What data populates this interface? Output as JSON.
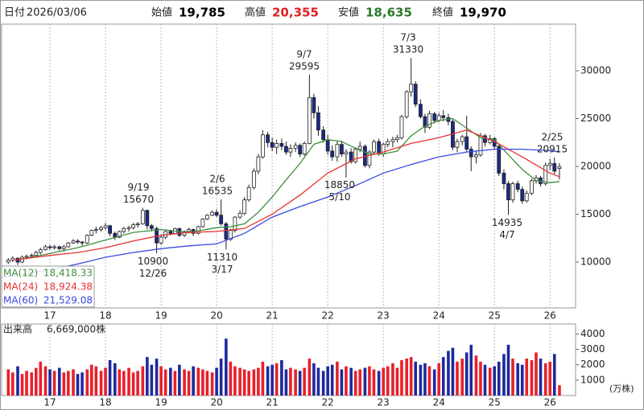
{
  "header": {
    "date_label": "日付",
    "date": "2026/03/06",
    "fields": [
      {
        "label": "始値",
        "value": "19,785",
        "color": "#000000"
      },
      {
        "label": "高値",
        "value": "20,355",
        "color": "#e02020"
      },
      {
        "label": "安値",
        "value": "18,635",
        "color": "#2a7a2a"
      },
      {
        "label": "終値",
        "value": "19,970",
        "color": "#000000"
      }
    ]
  },
  "chart_data": {
    "type": "candlestick",
    "x": [
      2016.25,
      2016.33,
      2016.42,
      2016.5,
      2016.58,
      2016.67,
      2016.75,
      2016.83,
      2016.92,
      2017.0,
      2017.08,
      2017.17,
      2017.25,
      2017.33,
      2017.42,
      2017.5,
      2017.58,
      2017.67,
      2017.75,
      2017.83,
      2017.92,
      2018.0,
      2018.08,
      2018.17,
      2018.25,
      2018.33,
      2018.42,
      2018.5,
      2018.58,
      2018.67,
      2018.75,
      2018.83,
      2018.92,
      2019.0,
      2019.08,
      2019.17,
      2019.25,
      2019.33,
      2019.42,
      2019.5,
      2019.58,
      2019.67,
      2019.75,
      2019.83,
      2019.92,
      2020.0,
      2020.08,
      2020.17,
      2020.25,
      2020.33,
      2020.42,
      2020.5,
      2020.58,
      2020.67,
      2020.75,
      2020.83,
      2020.92,
      2021.0,
      2021.08,
      2021.17,
      2021.25,
      2021.33,
      2021.42,
      2021.5,
      2021.58,
      2021.67,
      2021.75,
      2021.83,
      2021.92,
      2022.0,
      2022.08,
      2022.17,
      2022.25,
      2022.33,
      2022.42,
      2022.5,
      2022.58,
      2022.67,
      2022.75,
      2022.83,
      2022.92,
      2023.0,
      2023.08,
      2023.17,
      2023.25,
      2023.33,
      2023.42,
      2023.5,
      2023.58,
      2023.67,
      2023.75,
      2023.83,
      2023.92,
      2024.0,
      2024.08,
      2024.17,
      2024.25,
      2024.33,
      2024.42,
      2024.5,
      2024.58,
      2024.67,
      2024.75,
      2024.83,
      2024.92,
      2025.0,
      2025.08,
      2025.17,
      2025.25,
      2025.33,
      2025.42,
      2025.5,
      2025.58,
      2025.67,
      2025.75,
      2025.83,
      2025.92,
      2026.0,
      2026.08,
      2026.17
    ],
    "ohlc": [
      [
        10000,
        10400,
        9800,
        10200
      ],
      [
        10200,
        10600,
        10000,
        10400
      ],
      [
        10400,
        10500,
        9700,
        10000
      ],
      [
        10000,
        10700,
        9900,
        10500
      ],
      [
        10500,
        10800,
        10300,
        10600
      ],
      [
        10600,
        10900,
        10400,
        10700
      ],
      [
        10700,
        11200,
        10600,
        11000
      ],
      [
        11000,
        11500,
        10800,
        11300
      ],
      [
        11300,
        11800,
        11200,
        11600
      ],
      [
        11600,
        11800,
        11300,
        11500
      ],
      [
        11500,
        11800,
        11300,
        11600
      ],
      [
        11600,
        11700,
        11200,
        11400
      ],
      [
        11400,
        11800,
        11100,
        11600
      ],
      [
        11600,
        12100,
        11500,
        12000
      ],
      [
        12000,
        12400,
        11900,
        12200
      ],
      [
        12200,
        12400,
        11900,
        12100
      ],
      [
        12100,
        12200,
        11700,
        12000
      ],
      [
        12000,
        12900,
        11900,
        12800
      ],
      [
        12800,
        13400,
        12700,
        13300
      ],
      [
        13300,
        13700,
        13000,
        13400
      ],
      [
        13400,
        13800,
        13200,
        13600
      ],
      [
        13600,
        14100,
        13400,
        13800
      ],
      [
        13800,
        13900,
        12700,
        13000
      ],
      [
        13000,
        13200,
        12300,
        12600
      ],
      [
        12600,
        13300,
        12500,
        13200
      ],
      [
        13200,
        13700,
        13000,
        13500
      ],
      [
        13500,
        13800,
        13200,
        13600
      ],
      [
        13600,
        14100,
        13400,
        13900
      ],
      [
        13900,
        14200,
        13600,
        14000
      ],
      [
        14000,
        15670,
        13900,
        15400
      ],
      [
        15400,
        15500,
        13400,
        13800
      ],
      [
        13800,
        14000,
        13200,
        13500
      ],
      [
        13500,
        13700,
        10900,
        12000
      ],
      [
        12000,
        12800,
        11800,
        12600
      ],
      [
        12600,
        13300,
        12400,
        13200
      ],
      [
        13200,
        13400,
        12800,
        13000
      ],
      [
        13000,
        13600,
        12900,
        13500
      ],
      [
        13500,
        13600,
        12600,
        12800
      ],
      [
        12800,
        13300,
        12600,
        13200
      ],
      [
        13200,
        13600,
        13000,
        13400
      ],
      [
        13400,
        13500,
        12700,
        13000
      ],
      [
        13000,
        13800,
        12900,
        13700
      ],
      [
        13700,
        14600,
        13600,
        14500
      ],
      [
        14500,
        15000,
        14400,
        14900
      ],
      [
        14900,
        15400,
        14800,
        15200
      ],
      [
        15200,
        15500,
        14700,
        14900
      ],
      [
        14900,
        16535,
        13800,
        14000
      ],
      [
        14000,
        14200,
        11310,
        12400
      ],
      [
        12400,
        13500,
        12200,
        13300
      ],
      [
        13300,
        14800,
        13100,
        14700
      ],
      [
        14700,
        15400,
        14500,
        15100
      ],
      [
        15100,
        16800,
        14900,
        16500
      ],
      [
        16500,
        18100,
        16300,
        17800
      ],
      [
        17800,
        19800,
        17600,
        19500
      ],
      [
        19500,
        21300,
        19200,
        21000
      ],
      [
        21000,
        23800,
        20800,
        23300
      ],
      [
        23300,
        23600,
        22000,
        22500
      ],
      [
        22500,
        23000,
        21600,
        22000
      ],
      [
        22000,
        22800,
        21300,
        22400
      ],
      [
        22400,
        22900,
        21700,
        22100
      ],
      [
        22100,
        22600,
        21200,
        21500
      ],
      [
        21500,
        22300,
        21000,
        21900
      ],
      [
        21900,
        22500,
        21500,
        22200
      ],
      [
        22200,
        22400,
        21000,
        21300
      ],
      [
        21300,
        22600,
        21100,
        22400
      ],
      [
        22400,
        29595,
        22300,
        27200
      ],
      [
        27200,
        27600,
        25000,
        25600
      ],
      [
        25600,
        26300,
        23200,
        23800
      ],
      [
        23800,
        24200,
        22500,
        22800
      ],
      [
        22800,
        23300,
        21200,
        21600
      ],
      [
        21600,
        22200,
        20600,
        21000
      ],
      [
        21000,
        22600,
        20500,
        22300
      ],
      [
        22300,
        22700,
        21000,
        21300
      ],
      [
        21300,
        21800,
        18850,
        21500
      ],
      [
        21500,
        21900,
        20300,
        20500
      ],
      [
        20500,
        22000,
        20300,
        21800
      ],
      [
        21800,
        22600,
        21500,
        22100
      ],
      [
        22100,
        22300,
        19900,
        20100
      ],
      [
        20100,
        21700,
        19800,
        21500
      ],
      [
        21500,
        22800,
        21300,
        22600
      ],
      [
        22600,
        22900,
        21100,
        21300
      ],
      [
        21300,
        22500,
        21000,
        22300
      ],
      [
        22300,
        22900,
        22000,
        22600
      ],
      [
        22600,
        23100,
        22000,
        22800
      ],
      [
        22800,
        23300,
        22500,
        23000
      ],
      [
        23000,
        25400,
        22800,
        25200
      ],
      [
        25200,
        28000,
        25000,
        27800
      ],
      [
        27800,
        31330,
        27300,
        28600
      ],
      [
        28600,
        28900,
        26200,
        26500
      ],
      [
        26500,
        27000,
        25000,
        25200
      ],
      [
        25200,
        25500,
        23500,
        24100
      ],
      [
        24100,
        25800,
        23900,
        25500
      ],
      [
        25500,
        25700,
        24500,
        24800
      ],
      [
        24800,
        25600,
        24600,
        25300
      ],
      [
        25300,
        25900,
        24700,
        25100
      ],
      [
        25100,
        25500,
        24300,
        24700
      ],
      [
        24700,
        24900,
        21700,
        22000
      ],
      [
        22000,
        22900,
        21500,
        22600
      ],
      [
        22600,
        23300,
        22200,
        23100
      ],
      [
        23100,
        25300,
        21500,
        21800
      ],
      [
        21800,
        22100,
        19500,
        21000
      ],
      [
        21000,
        21700,
        20300,
        21200
      ],
      [
        21200,
        23500,
        21000,
        23200
      ],
      [
        23200,
        23400,
        22100,
        22500
      ],
      [
        22500,
        23300,
        22300,
        22900
      ],
      [
        22900,
        23100,
        21800,
        22100
      ],
      [
        22100,
        22400,
        19000,
        19300
      ],
      [
        19300,
        19700,
        17600,
        18200
      ],
      [
        18200,
        18500,
        14935,
        16500
      ],
      [
        16500,
        18400,
        16200,
        18200
      ],
      [
        18200,
        18500,
        17300,
        17600
      ],
      [
        17600,
        17900,
        16100,
        16400
      ],
      [
        16400,
        17500,
        16200,
        17200
      ],
      [
        17200,
        18700,
        17000,
        18500
      ],
      [
        18500,
        19100,
        18200,
        18800
      ],
      [
        18800,
        19000,
        17900,
        18200
      ],
      [
        18200,
        20400,
        18000,
        20100
      ],
      [
        20100,
        20800,
        19600,
        20300
      ],
      [
        20300,
        20915,
        19200,
        19500
      ],
      [
        19785,
        20355,
        18635,
        19970
      ]
    ],
    "up_color": "#ffffff",
    "down_color": "#1a2a8a",
    "xlim": [
      2016.13,
      2026.46
    ],
    "xticks": [
      {
        "value": 2017,
        "label": "17"
      },
      {
        "value": 2018,
        "label": "18"
      },
      {
        "value": 2019,
        "label": "19"
      },
      {
        "value": 2020,
        "label": "20"
      },
      {
        "value": 2021,
        "label": "21"
      },
      {
        "value": 2022,
        "label": "22"
      },
      {
        "value": 2023,
        "label": "23"
      },
      {
        "value": 2024,
        "label": "24"
      },
      {
        "value": 2025,
        "label": "25"
      },
      {
        "value": 2026,
        "label": "26"
      }
    ],
    "ylim": [
      5210,
      34874
    ],
    "yticks": [
      10000,
      15000,
      20000,
      25000,
      30000
    ],
    "grid": true,
    "series": [
      {
        "name": "MA(12)",
        "legend_value": "18,418.33",
        "color": "#3f8f3a",
        "x": [
          2016.5,
          2017,
          2017.5,
          2018,
          2018.5,
          2019,
          2019.5,
          2020,
          2020.25,
          2020.5,
          2020.75,
          2021,
          2021.25,
          2021.5,
          2021.75,
          2022,
          2022.25,
          2022.5,
          2022.75,
          2023,
          2023.25,
          2023.5,
          2023.75,
          2024,
          2024.25,
          2024.5,
          2024.75,
          2025,
          2025.25,
          2025.5,
          2025.75,
          2026,
          2026.17
        ],
        "values": [
          10300,
          10900,
          11500,
          12300,
          13100,
          13400,
          13100,
          13600,
          13700,
          14000,
          15200,
          16800,
          18600,
          20300,
          22300,
          22800,
          22600,
          21900,
          21300,
          21300,
          21600,
          23200,
          24200,
          24800,
          25000,
          24000,
          23000,
          22800,
          21200,
          19700,
          18500,
          18300,
          18418.33
        ]
      },
      {
        "name": "MA(24)",
        "legend_value": "18,924.38",
        "color": "#e83030",
        "x": [
          2016.33,
          2017,
          2017.5,
          2018,
          2018.5,
          2019,
          2019.5,
          2020,
          2020.5,
          2021,
          2021.5,
          2022,
          2022.5,
          2023,
          2023.5,
          2024,
          2024.5,
          2025,
          2025.5,
          2026,
          2026.17
        ],
        "values": [
          10200,
          10700,
          11000,
          11500,
          12200,
          12800,
          13100,
          13200,
          13500,
          15000,
          17000,
          19300,
          20800,
          21500,
          22400,
          23000,
          23800,
          22600,
          21000,
          19300,
          18924.38
        ]
      },
      {
        "name": "MA(60)",
        "legend_value": "21,529.08",
        "color": "#3a4ae0",
        "x": [
          2016.13,
          2016.5,
          2017,
          2017.5,
          2018,
          2018.5,
          2019,
          2019.5,
          2020,
          2020.5,
          2021,
          2021.5,
          2022,
          2022.5,
          2023,
          2023.5,
          2024,
          2024.5,
          2025,
          2025.5,
          2026,
          2026.17
        ],
        "values": [
          8400,
          8700,
          9200,
          9800,
          10500,
          11000,
          11400,
          11700,
          11900,
          13000,
          14700,
          15800,
          16800,
          18000,
          19300,
          20200,
          21000,
          21500,
          21800,
          21800,
          21650,
          21529.08
        ]
      }
    ],
    "annotations": [
      {
        "date": "9/19",
        "value": 15670
      },
      {
        "date": "12/26",
        "value": 10900
      },
      {
        "date": "2/6",
        "value": 16535
      },
      {
        "date": "3/17",
        "value": 11310
      },
      {
        "date": "9/7",
        "value": 29595
      },
      {
        "date": "5/10",
        "value": 18850
      },
      {
        "date": "7/3",
        "value": 31330
      },
      {
        "date": "4/7",
        "value": 14935
      },
      {
        "date": "2/25",
        "value": 20915
      }
    ],
    "volume": {
      "title": "出来高",
      "last": "6,669,000株",
      "unit": "(万株)",
      "up_color": "#e8202a",
      "down_color": "#1c2a9c",
      "values": [
        1700,
        1500,
        1900,
        1400,
        1600,
        1500,
        1800,
        2200,
        1900,
        1700,
        1600,
        1800,
        1500,
        1600,
        1700,
        1400,
        1500,
        1700,
        2000,
        1900,
        1600,
        1800,
        2300,
        2100,
        1700,
        1600,
        1800,
        1500,
        1600,
        1900,
        2500,
        2000,
        2400,
        1900,
        1700,
        1800,
        1600,
        2000,
        1700,
        1600,
        1900,
        1800,
        1700,
        1600,
        1500,
        1800,
        2400,
        3700,
        2200,
        1900,
        1800,
        1700,
        1600,
        1700,
        1800,
        2200,
        1900,
        2000,
        2100,
        2300,
        1700,
        1800,
        1700,
        1600,
        1800,
        2400,
        2100,
        1800,
        1600,
        1900,
        2000,
        2200,
        1700,
        1900,
        1800,
        1600,
        1700,
        1800,
        1900,
        1700,
        1600,
        1800,
        1900,
        2100,
        1800,
        2300,
        2400,
        2500,
        2200,
        2000,
        2100,
        1900,
        1700,
        2100,
        2500,
        2900,
        3100,
        2200,
        2400,
        2800,
        3300,
        2600,
        2200,
        2000,
        1800,
        1900,
        2200,
        2700,
        3300,
        2400,
        2100,
        2000,
        2400,
        2300,
        2800,
        2400,
        2100,
        2200,
        2700,
        666.9
      ],
      "ylim": [
        0,
        4650
      ],
      "yticks": [
        1000,
        2000,
        3000,
        4000
      ]
    }
  }
}
